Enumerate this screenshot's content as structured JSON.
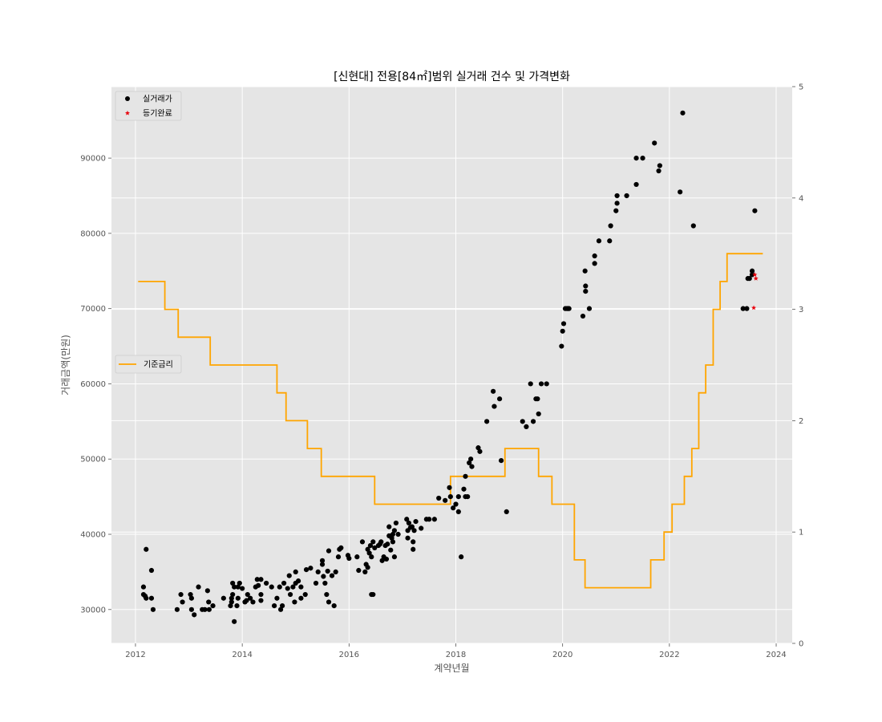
{
  "chart_data": {
    "type": "scatter",
    "title": "[신현대] 전용[84㎡]범위 실거래 건수 및 가격변화",
    "xlabel": "계약년월",
    "ylabel": "거래금액(만원)",
    "ylabel_right": "",
    "xlim": [
      2011.55,
      2024.3
    ],
    "ylim": [
      25500,
      99500
    ],
    "y2lim": [
      0,
      5
    ],
    "xticks": [
      2012,
      2014,
      2016,
      2018,
      2020,
      2022,
      2024
    ],
    "yticks": [
      30000,
      40000,
      50000,
      60000,
      70000,
      80000,
      90000
    ],
    "y2ticks": [
      0,
      1,
      2,
      3,
      4,
      5
    ],
    "grid": true,
    "legend_top_position": "upper-left",
    "legend_mid_position": "center-left",
    "series": [
      {
        "name": "실거래가",
        "kind": "scatter",
        "marker": "circle",
        "color": "#000000",
        "points": [
          [
            2012.15,
            33000
          ],
          [
            2012.15,
            32000
          ],
          [
            2012.18,
            31800
          ],
          [
            2012.2,
            38000
          ],
          [
            2012.2,
            31500
          ],
          [
            2012.3,
            31500
          ],
          [
            2012.3,
            35200
          ],
          [
            2012.33,
            30000
          ],
          [
            2012.78,
            30000
          ],
          [
            2012.85,
            32000
          ],
          [
            2012.88,
            31000
          ],
          [
            2013.03,
            32000
          ],
          [
            2013.05,
            31500
          ],
          [
            2013.05,
            30000
          ],
          [
            2013.1,
            29300
          ],
          [
            2013.18,
            33000
          ],
          [
            2013.25,
            30000
          ],
          [
            2013.3,
            30000
          ],
          [
            2013.35,
            32500
          ],
          [
            2013.37,
            31000
          ],
          [
            2013.38,
            30000
          ],
          [
            2013.45,
            30500
          ],
          [
            2013.65,
            31500
          ],
          [
            2013.78,
            30500
          ],
          [
            2013.8,
            31000
          ],
          [
            2013.8,
            31500
          ],
          [
            2013.82,
            32000
          ],
          [
            2013.82,
            33500
          ],
          [
            2013.85,
            28400
          ],
          [
            2013.85,
            33000
          ],
          [
            2013.9,
            30500
          ],
          [
            2013.92,
            31500
          ],
          [
            2013.92,
            33000
          ],
          [
            2013.95,
            33500
          ],
          [
            2014.0,
            32800
          ],
          [
            2014.05,
            31000
          ],
          [
            2014.08,
            31200
          ],
          [
            2014.1,
            32000
          ],
          [
            2014.15,
            31500
          ],
          [
            2014.2,
            31000
          ],
          [
            2014.25,
            33000
          ],
          [
            2014.28,
            34000
          ],
          [
            2014.3,
            33200
          ],
          [
            2014.35,
            34000
          ],
          [
            2014.35,
            31200
          ],
          [
            2014.35,
            32000
          ],
          [
            2014.45,
            33500
          ],
          [
            2014.55,
            33000
          ],
          [
            2014.6,
            30500
          ],
          [
            2014.65,
            31500
          ],
          [
            2014.7,
            33000
          ],
          [
            2014.72,
            30000
          ],
          [
            2014.75,
            30500
          ],
          [
            2014.78,
            33500
          ],
          [
            2014.85,
            32800
          ],
          [
            2014.88,
            34500
          ],
          [
            2014.9,
            32000
          ],
          [
            2014.95,
            33000
          ],
          [
            2014.98,
            31000
          ],
          [
            2015.0,
            35000
          ],
          [
            2015.0,
            33500
          ],
          [
            2015.05,
            33800
          ],
          [
            2015.1,
            33000
          ],
          [
            2015.1,
            31500
          ],
          [
            2015.18,
            32000
          ],
          [
            2015.2,
            35300
          ],
          [
            2015.28,
            35500
          ],
          [
            2015.38,
            33500
          ],
          [
            2015.42,
            35000
          ],
          [
            2015.5,
            36500
          ],
          [
            2015.5,
            36000
          ],
          [
            2015.52,
            34400
          ],
          [
            2015.55,
            33500
          ],
          [
            2015.58,
            32000
          ],
          [
            2015.6,
            35100
          ],
          [
            2015.62,
            37800
          ],
          [
            2015.62,
            31000
          ],
          [
            2015.68,
            34500
          ],
          [
            2015.72,
            30500
          ],
          [
            2015.75,
            35000
          ],
          [
            2015.8,
            37000
          ],
          [
            2015.82,
            38000
          ],
          [
            2015.85,
            38200
          ],
          [
            2015.98,
            37200
          ],
          [
            2016.0,
            36800
          ],
          [
            2016.15,
            37000
          ],
          [
            2016.18,
            35200
          ],
          [
            2016.25,
            39000
          ],
          [
            2016.3,
            35000
          ],
          [
            2016.32,
            36000
          ],
          [
            2016.35,
            38000
          ],
          [
            2016.35,
            35600
          ],
          [
            2016.38,
            37500
          ],
          [
            2016.4,
            38500
          ],
          [
            2016.42,
            37000
          ],
          [
            2016.42,
            32000
          ],
          [
            2016.45,
            32000
          ],
          [
            2016.45,
            39000
          ],
          [
            2016.48,
            38200
          ],
          [
            2016.55,
            38500
          ],
          [
            2016.58,
            38700
          ],
          [
            2016.6,
            39000
          ],
          [
            2016.62,
            36500
          ],
          [
            2016.65,
            37000
          ],
          [
            2016.68,
            38500
          ],
          [
            2016.7,
            36700
          ],
          [
            2016.72,
            38700
          ],
          [
            2016.75,
            39800
          ],
          [
            2016.75,
            41000
          ],
          [
            2016.78,
            37900
          ],
          [
            2016.8,
            39500
          ],
          [
            2016.82,
            40000
          ],
          [
            2016.82,
            39000
          ],
          [
            2016.85,
            40500
          ],
          [
            2016.85,
            37000
          ],
          [
            2016.88,
            41500
          ],
          [
            2016.92,
            40000
          ],
          [
            2017.08,
            42000
          ],
          [
            2017.1,
            39500
          ],
          [
            2017.1,
            40500
          ],
          [
            2017.12,
            41500
          ],
          [
            2017.15,
            40900
          ],
          [
            2017.18,
            41000
          ],
          [
            2017.2,
            38000
          ],
          [
            2017.2,
            39000
          ],
          [
            2017.22,
            40500
          ],
          [
            2017.25,
            41700
          ],
          [
            2017.35,
            40800
          ],
          [
            2017.45,
            42000
          ],
          [
            2017.5,
            42000
          ],
          [
            2017.6,
            42000
          ],
          [
            2017.68,
            44800
          ],
          [
            2017.8,
            44500
          ],
          [
            2017.88,
            46200
          ],
          [
            2017.9,
            45000
          ],
          [
            2017.95,
            43500
          ],
          [
            2018.0,
            44000
          ],
          [
            2018.05,
            43000
          ],
          [
            2018.05,
            45000
          ],
          [
            2018.1,
            37000
          ],
          [
            2018.15,
            46000
          ],
          [
            2018.18,
            47700
          ],
          [
            2018.18,
            45000
          ],
          [
            2018.22,
            45000
          ],
          [
            2018.25,
            49500
          ],
          [
            2018.28,
            50000
          ],
          [
            2018.3,
            49000
          ],
          [
            2018.42,
            51500
          ],
          [
            2018.45,
            51000
          ],
          [
            2018.58,
            55000
          ],
          [
            2018.7,
            59000
          ],
          [
            2018.72,
            57000
          ],
          [
            2018.82,
            58000
          ],
          [
            2018.85,
            49800
          ],
          [
            2018.95,
            43000
          ],
          [
            2019.25,
            55000
          ],
          [
            2019.32,
            54300
          ],
          [
            2019.4,
            60000
          ],
          [
            2019.45,
            55000
          ],
          [
            2019.5,
            58000
          ],
          [
            2019.53,
            58000
          ],
          [
            2019.55,
            56000
          ],
          [
            2019.6,
            60000
          ],
          [
            2019.7,
            60000
          ],
          [
            2019.98,
            65000
          ],
          [
            2020.0,
            67000
          ],
          [
            2020.02,
            68000
          ],
          [
            2020.05,
            70000
          ],
          [
            2020.08,
            70000
          ],
          [
            2020.1,
            70000
          ],
          [
            2020.12,
            70000
          ],
          [
            2020.38,
            69000
          ],
          [
            2020.42,
            75000
          ],
          [
            2020.43,
            73000
          ],
          [
            2020.43,
            72300
          ],
          [
            2020.5,
            70000
          ],
          [
            2020.6,
            76000
          ],
          [
            2020.6,
            77000
          ],
          [
            2020.68,
            79000
          ],
          [
            2020.88,
            79000
          ],
          [
            2020.9,
            81000
          ],
          [
            2021.0,
            83000
          ],
          [
            2021.02,
            84000
          ],
          [
            2021.02,
            85000
          ],
          [
            2021.2,
            85000
          ],
          [
            2021.38,
            86500
          ],
          [
            2021.38,
            90000
          ],
          [
            2021.5,
            90000
          ],
          [
            2021.72,
            92000
          ],
          [
            2021.8,
            88300
          ],
          [
            2021.82,
            89000
          ],
          [
            2022.2,
            85500
          ],
          [
            2022.25,
            96000
          ],
          [
            2022.45,
            81000
          ],
          [
            2023.38,
            70000
          ],
          [
            2023.45,
            70000
          ],
          [
            2023.47,
            74000
          ],
          [
            2023.5,
            74000
          ],
          [
            2023.55,
            74500
          ],
          [
            2023.55,
            75000
          ],
          [
            2023.6,
            83000
          ]
        ]
      },
      {
        "name": "등기완료",
        "kind": "scatter",
        "marker": "star",
        "color": "#e8000b",
        "points": [
          [
            2023.58,
            70100
          ],
          [
            2023.6,
            74500
          ],
          [
            2023.62,
            74000
          ]
        ]
      },
      {
        "name": "기준금리",
        "kind": "step",
        "axis": "right",
        "color": "#ffa500",
        "points": [
          [
            2012.05,
            3.25
          ],
          [
            2012.55,
            3.0
          ],
          [
            2012.8,
            2.75
          ],
          [
            2013.4,
            2.5
          ],
          [
            2014.65,
            2.25
          ],
          [
            2014.82,
            2.0
          ],
          [
            2015.22,
            1.75
          ],
          [
            2015.48,
            1.5
          ],
          [
            2016.48,
            1.25
          ],
          [
            2017.9,
            1.5
          ],
          [
            2018.92,
            1.75
          ],
          [
            2019.55,
            1.5
          ],
          [
            2019.8,
            1.25
          ],
          [
            2020.22,
            0.75
          ],
          [
            2020.42,
            0.5
          ],
          [
            2021.65,
            0.75
          ],
          [
            2021.9,
            1.0
          ],
          [
            2022.05,
            1.25
          ],
          [
            2022.28,
            1.5
          ],
          [
            2022.42,
            1.75
          ],
          [
            2022.55,
            2.25
          ],
          [
            2022.68,
            2.5
          ],
          [
            2022.82,
            3.0
          ],
          [
            2022.95,
            3.25
          ],
          [
            2023.08,
            3.5
          ],
          [
            2023.75,
            3.5
          ]
        ]
      }
    ]
  }
}
